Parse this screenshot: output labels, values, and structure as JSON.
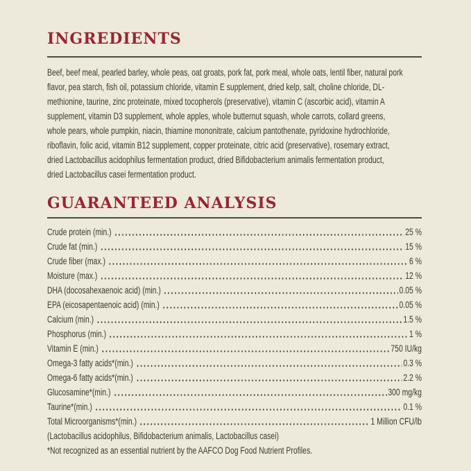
{
  "colors": {
    "background": "#EDEADB",
    "heading": "#9A2533",
    "text": "#3C3B31",
    "rule": "#4B4A42"
  },
  "ingredients": {
    "title": "INGREDIENTS",
    "lines": [
      "Beef, beef meal, pearled barley, whole peas, oat groats, pork fat, pork meal, whole oats, lentil fiber, natural pork",
      "flavor, pea starch, fish oil, potassium chloride, vitamin E supplement, dried kelp, salt, choline chloride, DL-",
      "methionine, taurine, zinc proteinate, mixed tocopherols (preservative), vitamin C (ascorbic acid), vitamin A",
      "supplement, vitamin D3 supplement, whole apples, whole butternut squash, whole carrots, collard greens,",
      "whole pears, whole pumpkin, niacin, thiamine mononitrate, calcium pantothenate, pyridoxine hydrochloride,",
      "riboflavin, folic acid, vitamin B12 supplement, copper proteinate, citric acid (preservative), rosemary extract,",
      "dried Lactobacillus acidophilus fermentation product, dried Bifidobacterium animalis fermentation product,",
      "dried Lactobacillus casei fermentation product."
    ]
  },
  "guaranteed_analysis": {
    "title": "GUARANTEED ANALYSIS",
    "rows": [
      {
        "label": "Crude protein (min.)",
        "value": "25 %"
      },
      {
        "label": "Crude fat (min.)",
        "value": "15 %"
      },
      {
        "label": "Crude fiber (max.)",
        "value": "6 %"
      },
      {
        "label": "Moisture (max.)",
        "value": "12 %"
      },
      {
        "label": "DHA (docosahexaenoic acid) (min.)",
        "value": "0.05 %"
      },
      {
        "label": "EPA (eicosapentaenoic acid) (min.)",
        "value": "0.05 %"
      },
      {
        "label": "Calcium (min.)",
        "value": "1.5 %"
      },
      {
        "label": "Phosphorus (min.)",
        "value": "1 %"
      },
      {
        "label": "Vitamin E (min.)",
        "value": "750 IU/kg"
      },
      {
        "label": "Omega-3 fatty acids*(min.)",
        "value": "0.3 %"
      },
      {
        "label": "Omega-6 fatty acids*(min.)",
        "value": "2.2 %"
      },
      {
        "label": "Glucosamine*(min.)",
        "value": "300 mg/kg"
      },
      {
        "label": "Taurine*(min.)",
        "value": "0.1 %"
      },
      {
        "label": "Total Microorganisms*(min.)",
        "value": "1 Million CFU/lb"
      }
    ],
    "microorganisms_note": "(Lactobacillus acidophilus, Bifidobacterium animalis, Lactobacillus casei)",
    "footnote": "*Not recognized as an essential nutrient by the AAFCO Dog Food Nutrient Profiles."
  }
}
